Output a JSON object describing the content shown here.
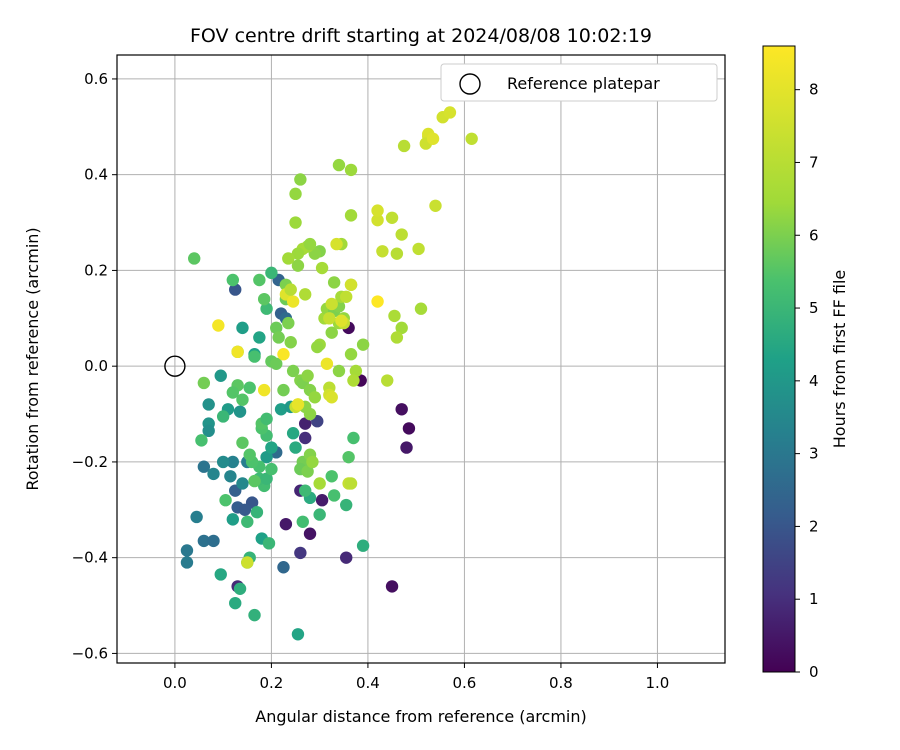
{
  "chart_data": {
    "type": "scatter",
    "title": "FOV centre drift starting at 2024/08/08 10:02:19",
    "xlabel": "Angular distance from reference (arcmin)",
    "ylabel": "Rotation from reference (arcmin)",
    "xlim": [
      -0.12,
      1.14
    ],
    "ylim": [
      -0.62,
      0.65
    ],
    "x_ticks": [
      0.0,
      0.2,
      0.4,
      0.6,
      0.8,
      1.0
    ],
    "x_tick_labels": [
      "0.0",
      "0.2",
      "0.4",
      "0.6",
      "0.8",
      "1.0"
    ],
    "y_ticks": [
      -0.6,
      -0.4,
      -0.2,
      0.0,
      0.2,
      0.4,
      0.6
    ],
    "y_tick_labels": [
      "−0.6",
      "−0.4",
      "−0.2",
      "0.0",
      "0.2",
      "0.4",
      "0.6"
    ],
    "grid": true,
    "legend": {
      "position": "top-right",
      "entries": [
        "Reference platepar"
      ]
    },
    "reference_point": {
      "x": 0.0,
      "y": 0.0
    },
    "colorbar": {
      "label": "Hours from first FF file",
      "colormap": "viridis",
      "range": [
        0,
        8.6
      ],
      "ticks": [
        0,
        1,
        2,
        3,
        4,
        5,
        6,
        7,
        8
      ],
      "tick_labels": [
        "0",
        "1",
        "2",
        "3",
        "4",
        "5",
        "6",
        "7",
        "8"
      ]
    },
    "points": [
      [
        0.36,
        0.08,
        0.2
      ],
      [
        0.385,
        -0.03,
        0.1
      ],
      [
        0.47,
        -0.09,
        0.3
      ],
      [
        0.485,
        -0.13,
        0.2
      ],
      [
        0.48,
        -0.17,
        0.5
      ],
      [
        0.45,
        -0.46,
        0.3
      ],
      [
        0.355,
        -0.4,
        0.9
      ],
      [
        0.26,
        -0.39,
        1.2
      ],
      [
        0.28,
        -0.35,
        0.4
      ],
      [
        0.23,
        -0.33,
        0.5
      ],
      [
        0.26,
        -0.26,
        0.8
      ],
      [
        0.305,
        -0.28,
        0.6
      ],
      [
        0.27,
        -0.15,
        1.0
      ],
      [
        0.295,
        -0.115,
        1.5
      ],
      [
        0.27,
        -0.12,
        0.7
      ],
      [
        0.13,
        -0.46,
        0.9
      ],
      [
        0.125,
        0.16,
        2.0
      ],
      [
        0.22,
        0.11,
        2.3
      ],
      [
        0.23,
        0.1,
        2.6
      ],
      [
        0.215,
        0.18,
        2.4
      ],
      [
        0.16,
        -0.285,
        2.0
      ],
      [
        0.13,
        -0.295,
        2.2
      ],
      [
        0.145,
        -0.3,
        2.1
      ],
      [
        0.125,
        -0.26,
        2.3
      ],
      [
        0.21,
        -0.18,
        2.6
      ],
      [
        0.225,
        -0.42,
        2.5
      ],
      [
        0.06,
        -0.21,
        2.9
      ],
      [
        0.06,
        -0.365,
        2.8
      ],
      [
        0.08,
        -0.365,
        2.7
      ],
      [
        0.025,
        -0.385,
        3.0
      ],
      [
        0.025,
        -0.41,
        3.1
      ],
      [
        0.045,
        -0.315,
        3.2
      ],
      [
        0.15,
        -0.2,
        3.2
      ],
      [
        0.115,
        -0.23,
        3.4
      ],
      [
        0.14,
        -0.245,
        3.5
      ],
      [
        0.12,
        -0.2,
        3.3
      ],
      [
        0.08,
        -0.225,
        3.4
      ],
      [
        0.1,
        -0.2,
        3.6
      ],
      [
        0.07,
        -0.08,
        3.8
      ],
      [
        0.07,
        -0.12,
        3.9
      ],
      [
        0.07,
        -0.135,
        3.7
      ],
      [
        0.095,
        -0.02,
        4.0
      ],
      [
        0.11,
        -0.09,
        4.1
      ],
      [
        0.135,
        -0.095,
        3.9
      ],
      [
        0.14,
        0.08,
        4.2
      ],
      [
        0.165,
        0.025,
        4.3
      ],
      [
        0.175,
        0.06,
        4.4
      ],
      [
        0.12,
        -0.32,
        4.2
      ],
      [
        0.18,
        -0.36,
        4.3
      ],
      [
        0.19,
        -0.19,
        4.1
      ],
      [
        0.2,
        -0.17,
        4.4
      ],
      [
        0.22,
        -0.09,
        4.2
      ],
      [
        0.24,
        -0.085,
        4.0
      ],
      [
        0.245,
        -0.14,
        4.5
      ],
      [
        0.25,
        -0.17,
        4.6
      ],
      [
        0.255,
        -0.56,
        4.4
      ],
      [
        0.165,
        -0.52,
        4.8
      ],
      [
        0.125,
        -0.495,
        4.6
      ],
      [
        0.135,
        -0.465,
        4.7
      ],
      [
        0.095,
        -0.435,
        4.5
      ],
      [
        0.155,
        -0.4,
        4.9
      ],
      [
        0.15,
        -0.41,
        5.0
      ],
      [
        0.17,
        -0.305,
        4.9
      ],
      [
        0.15,
        -0.325,
        5.1
      ],
      [
        0.195,
        -0.37,
        5.0
      ],
      [
        0.3,
        -0.31,
        5.0
      ],
      [
        0.355,
        -0.29,
        4.9
      ],
      [
        0.39,
        -0.375,
        4.7
      ],
      [
        0.28,
        -0.275,
        4.6
      ],
      [
        0.27,
        -0.26,
        5.1
      ],
      [
        0.265,
        -0.325,
        5.2
      ],
      [
        0.33,
        -0.27,
        5.3
      ],
      [
        0.325,
        -0.23,
        5.4
      ],
      [
        0.36,
        -0.19,
        5.5
      ],
      [
        0.37,
        -0.15,
        5.3
      ],
      [
        0.105,
        -0.28,
        5.4
      ],
      [
        0.185,
        -0.25,
        5.2
      ],
      [
        0.175,
        -0.21,
        5.3
      ],
      [
        0.16,
        -0.2,
        5.4
      ],
      [
        0.175,
        -0.235,
        5.1
      ],
      [
        0.19,
        -0.235,
        5.0
      ],
      [
        0.19,
        -0.145,
        5.2
      ],
      [
        0.18,
        -0.13,
        5.4
      ],
      [
        0.18,
        -0.12,
        5.5
      ],
      [
        0.14,
        -0.16,
        5.6
      ],
      [
        0.155,
        -0.185,
        5.5
      ],
      [
        0.165,
        -0.24,
        5.6
      ],
      [
        0.2,
        -0.215,
        5.3
      ],
      [
        0.14,
        -0.07,
        5.5
      ],
      [
        0.155,
        -0.045,
        5.4
      ],
      [
        0.13,
        -0.04,
        5.6
      ],
      [
        0.12,
        -0.055,
        5.5
      ],
      [
        0.13,
        0.03,
        5.7
      ],
      [
        0.165,
        0.02,
        5.3
      ],
      [
        0.19,
        -0.11,
        5.2
      ],
      [
        0.19,
        0.12,
        5.1
      ],
      [
        0.12,
        0.18,
        5.4
      ],
      [
        0.175,
        0.18,
        5.5
      ],
      [
        0.185,
        0.14,
        5.6
      ],
      [
        0.2,
        0.195,
        5.0
      ],
      [
        0.2,
        0.01,
        5.7
      ],
      [
        0.21,
        0.08,
        5.8
      ],
      [
        0.215,
        0.06,
        5.9
      ],
      [
        0.23,
        0.17,
        6.0
      ],
      [
        0.23,
        0.14,
        5.8
      ],
      [
        0.235,
        0.09,
        6.0
      ],
      [
        0.24,
        0.05,
        6.1
      ],
      [
        0.21,
        0.005,
        5.8
      ],
      [
        0.225,
        -0.05,
        5.9
      ],
      [
        0.245,
        -0.01,
        6.0
      ],
      [
        0.26,
        -0.03,
        6.1
      ],
      [
        0.265,
        -0.035,
        6.0
      ],
      [
        0.275,
        -0.02,
        6.2
      ],
      [
        0.28,
        -0.05,
        6.1
      ],
      [
        0.27,
        -0.085,
        6.2
      ],
      [
        0.265,
        -0.2,
        5.9
      ],
      [
        0.26,
        -0.215,
        5.8
      ],
      [
        0.275,
        -0.22,
        6.0
      ],
      [
        0.28,
        -0.185,
        6.1
      ],
      [
        0.285,
        -0.2,
        6.3
      ],
      [
        0.3,
        -0.245,
        6.6
      ],
      [
        0.28,
        -0.1,
        6.2
      ],
      [
        0.29,
        -0.065,
        6.3
      ],
      [
        0.3,
        0.045,
        6.4
      ],
      [
        0.295,
        0.04,
        6.3
      ],
      [
        0.31,
        0.1,
        6.5
      ],
      [
        0.315,
        0.12,
        6.3
      ],
      [
        0.325,
        0.07,
        6.2
      ],
      [
        0.34,
        0.09,
        6.4
      ],
      [
        0.33,
        0.115,
        6.0
      ],
      [
        0.34,
        0.125,
        6.1
      ],
      [
        0.345,
        0.145,
        6.6
      ],
      [
        0.35,
        0.1,
        6.3
      ],
      [
        0.33,
        0.175,
        6.2
      ],
      [
        0.365,
        0.17,
        6.5
      ],
      [
        0.34,
        -0.01,
        6.2
      ],
      [
        0.365,
        0.025,
        6.3
      ],
      [
        0.375,
        -0.01,
        6.6
      ],
      [
        0.37,
        -0.03,
        6.8
      ],
      [
        0.39,
        0.045,
        6.2
      ],
      [
        0.3,
        0.24,
        6.1
      ],
      [
        0.29,
        0.235,
        6.2
      ],
      [
        0.275,
        0.25,
        6.5
      ],
      [
        0.265,
        0.245,
        6.6
      ],
      [
        0.255,
        0.235,
        6.4
      ],
      [
        0.255,
        0.21,
        6.2
      ],
      [
        0.235,
        0.225,
        6.5
      ],
      [
        0.28,
        0.255,
        6.3
      ],
      [
        0.305,
        0.205,
        6.6
      ],
      [
        0.345,
        0.255,
        6.5
      ],
      [
        0.25,
        0.3,
        6.4
      ],
      [
        0.25,
        0.36,
        6.3
      ],
      [
        0.26,
        0.39,
        6.2
      ],
      [
        0.34,
        0.42,
        6.3
      ],
      [
        0.365,
        0.41,
        6.4
      ],
      [
        0.365,
        0.315,
        6.5
      ],
      [
        0.335,
        0.255,
        7.7
      ],
      [
        0.23,
        0.15,
        7.9
      ],
      [
        0.245,
        0.135,
        8.2
      ],
      [
        0.325,
        0.13,
        7.4
      ],
      [
        0.355,
        0.145,
        7.2
      ],
      [
        0.35,
        0.09,
        7.3
      ],
      [
        0.32,
        0.1,
        7.3
      ],
      [
        0.365,
        0.17,
        7.6
      ],
      [
        0.24,
        0.16,
        7.0
      ],
      [
        0.27,
        0.15,
        6.8
      ],
      [
        0.255,
        -0.08,
        7.8
      ],
      [
        0.25,
        -0.085,
        7.4
      ],
      [
        0.15,
        -0.41,
        7.5
      ],
      [
        0.36,
        -0.245,
        7.3
      ],
      [
        0.365,
        -0.245,
        7.1
      ],
      [
        0.32,
        -0.045,
        7.1
      ],
      [
        0.32,
        -0.06,
        7.6
      ],
      [
        0.325,
        -0.065,
        7.8
      ],
      [
        0.345,
        0.095,
        7.9
      ],
      [
        0.315,
        0.005,
        8.2
      ],
      [
        0.09,
        0.085,
        8.4
      ],
      [
        0.13,
        0.03,
        8.3
      ],
      [
        0.185,
        -0.05,
        8.3
      ],
      [
        0.225,
        0.025,
        8.5
      ],
      [
        0.255,
        -0.08,
        8.1
      ],
      [
        0.42,
        0.135,
        8.6
      ],
      [
        0.44,
        -0.03,
        7.0
      ],
      [
        0.455,
        0.105,
        6.7
      ],
      [
        0.47,
        0.08,
        6.5
      ],
      [
        0.46,
        0.06,
        6.8
      ],
      [
        0.51,
        0.12,
        6.6
      ],
      [
        0.45,
        0.31,
        7.2
      ],
      [
        0.47,
        0.275,
        7.1
      ],
      [
        0.46,
        0.235,
        7.0
      ],
      [
        0.43,
        0.24,
        7.3
      ],
      [
        0.42,
        0.305,
        7.6
      ],
      [
        0.42,
        0.325,
        7.7
      ],
      [
        0.505,
        0.245,
        7.2
      ],
      [
        0.54,
        0.335,
        7.4
      ],
      [
        0.475,
        0.46,
        7.0
      ],
      [
        0.525,
        0.48,
        7.6
      ],
      [
        0.525,
        0.485,
        7.8
      ],
      [
        0.52,
        0.465,
        7.5
      ],
      [
        0.535,
        0.475,
        7.9
      ],
      [
        0.555,
        0.52,
        7.6
      ],
      [
        0.57,
        0.53,
        7.7
      ],
      [
        0.615,
        0.475,
        7.2
      ],
      [
        0.04,
        0.225,
        5.6
      ],
      [
        0.06,
        -0.035,
        5.9
      ],
      [
        0.055,
        -0.155,
        5.3
      ],
      [
        0.1,
        -0.105,
        5.0
      ]
    ]
  }
}
